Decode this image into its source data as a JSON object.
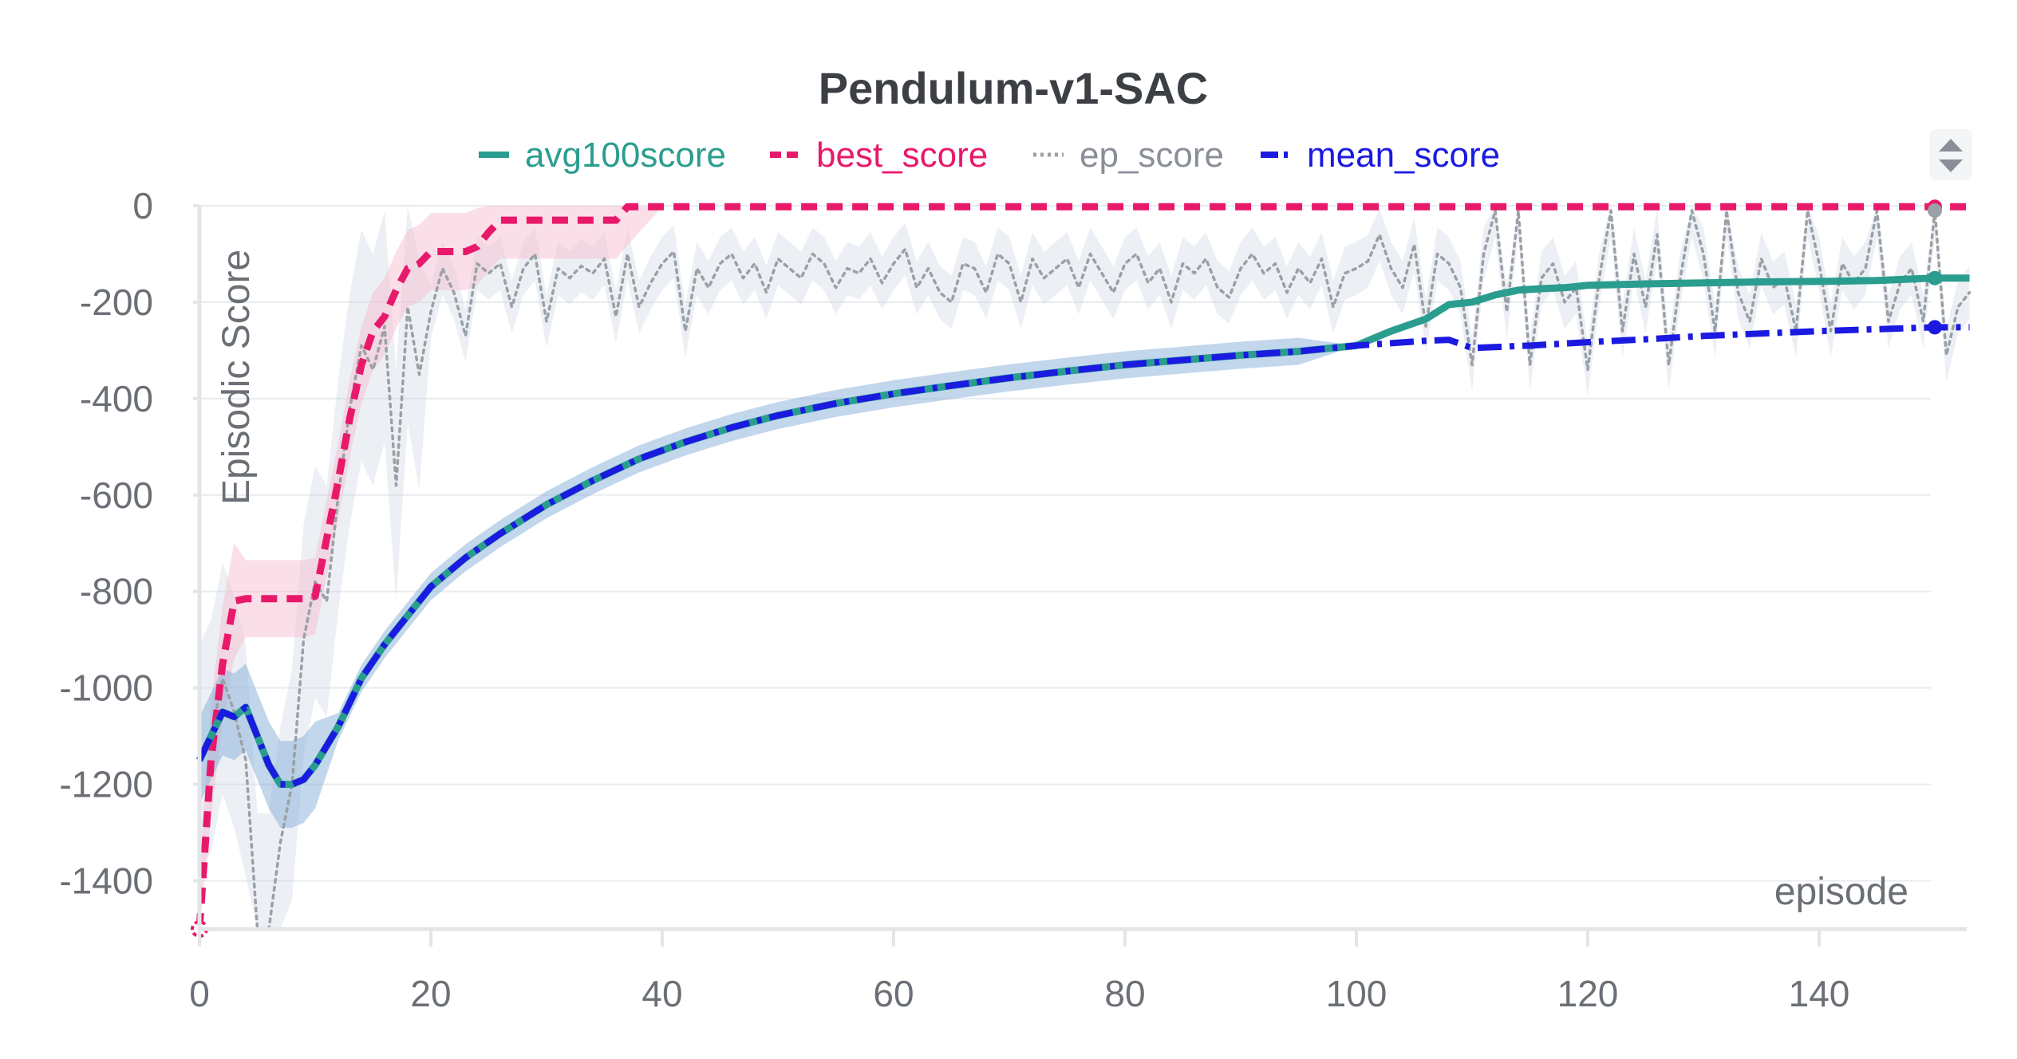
{
  "chart_data": {
    "type": "line",
    "title": "Pendulum-v1-SAC",
    "xlabel": "episode",
    "ylabel": "Episodic Score",
    "xlim": [
      0,
      153
    ],
    "ylim": [
      -1500,
      0
    ],
    "x_ticks": [
      0,
      20,
      40,
      60,
      80,
      100,
      120,
      140
    ],
    "y_ticks": [
      0,
      -200,
      -400,
      -600,
      -800,
      -1000,
      -1200,
      -1400
    ],
    "x_tick_labels": [
      "0",
      "20",
      "40",
      "60",
      "80",
      "100",
      "120",
      "140"
    ],
    "y_tick_labels": [
      "0",
      "-200",
      "-400",
      "-600",
      "-800",
      "-1000",
      "-1200",
      "-1400"
    ],
    "grid": true,
    "legend_position": "top-center",
    "series": [
      {
        "name": "avg100score",
        "color": "#2a9d8f",
        "dash": "solid",
        "x": [
          0,
          2,
          3,
          4,
          5,
          6,
          7,
          8,
          9,
          10,
          12,
          14,
          16,
          18,
          20,
          23,
          26,
          30,
          34,
          38,
          42,
          46,
          50,
          55,
          60,
          65,
          70,
          75,
          80,
          85,
          90,
          95,
          100,
          103,
          106,
          108,
          110,
          112,
          114,
          116,
          118,
          120,
          125,
          130,
          135,
          140,
          145,
          150,
          153
        ],
        "y": [
          -1150,
          -1050,
          -1060,
          -1040,
          -1100,
          -1160,
          -1200,
          -1200,
          -1190,
          -1160,
          -1080,
          -980,
          -910,
          -850,
          -790,
          -730,
          -680,
          -620,
          -570,
          -525,
          -490,
          -460,
          -435,
          -410,
          -390,
          -373,
          -357,
          -343,
          -330,
          -320,
          -310,
          -302,
          -290,
          -260,
          -235,
          -205,
          -200,
          -185,
          -175,
          -172,
          -170,
          -165,
          -162,
          -160,
          -158,
          -157,
          -155,
          -150,
          -150
        ]
      },
      {
        "name": "best_score",
        "color": "#e8196a",
        "dash": "dashed",
        "x": [
          0,
          1,
          2,
          3,
          4,
          5,
          6,
          7,
          8,
          9,
          10,
          11,
          12,
          13,
          14,
          15,
          16,
          17,
          18,
          19,
          20,
          21,
          22,
          23,
          24,
          25,
          26,
          27,
          28,
          29,
          30,
          31,
          32,
          33,
          34,
          35,
          36,
          37,
          40,
          60,
          80,
          100,
          120,
          140,
          150,
          153
        ],
        "y": [
          -1500,
          -1150,
          -950,
          -820,
          -815,
          -815,
          -815,
          -815,
          -815,
          -815,
          -810,
          -690,
          -570,
          -440,
          -330,
          -260,
          -230,
          -175,
          -130,
          -120,
          -95,
          -95,
          -95,
          -95,
          -85,
          -55,
          -30,
          -30,
          -30,
          -30,
          -30,
          -30,
          -30,
          -30,
          -30,
          -30,
          -30,
          -2,
          -2,
          -2,
          -2,
          -2,
          -2,
          -2,
          -2,
          -2
        ]
      },
      {
        "name": "ep_score",
        "color": "#9aa0a6",
        "dash": "dotted",
        "x": [
          0,
          1,
          2,
          3,
          4,
          5,
          6,
          7,
          8,
          9,
          10,
          11,
          12,
          13,
          14,
          15,
          16,
          17,
          18,
          19,
          20,
          21,
          22,
          23,
          24,
          25,
          26,
          27,
          28,
          29,
          30,
          31,
          32,
          33,
          34,
          35,
          36,
          37,
          38,
          39,
          40,
          41,
          42,
          43,
          44,
          45,
          46,
          47,
          48,
          49,
          50,
          51,
          52,
          53,
          54,
          55,
          56,
          57,
          58,
          59,
          60,
          61,
          62,
          63,
          64,
          65,
          66,
          67,
          68,
          69,
          70,
          71,
          72,
          73,
          74,
          75,
          76,
          77,
          78,
          79,
          80,
          81,
          82,
          83,
          84,
          85,
          86,
          87,
          88,
          89,
          90,
          91,
          92,
          93,
          94,
          95,
          96,
          97,
          98,
          99,
          100,
          101,
          102,
          103,
          104,
          105,
          106,
          107,
          108,
          109,
          110,
          111,
          112,
          113,
          114,
          115,
          116,
          117,
          118,
          119,
          120,
          121,
          122,
          123,
          124,
          125,
          126,
          127,
          128,
          129,
          130,
          131,
          132,
          133,
          134,
          135,
          136,
          137,
          138,
          139,
          140,
          141,
          142,
          143,
          144,
          145,
          146,
          147,
          148,
          149,
          150,
          151,
          152,
          153
        ],
        "y": [
          -1150,
          -1100,
          -980,
          -1050,
          -1150,
          -1500,
          -1500,
          -1320,
          -1200,
          -900,
          -780,
          -820,
          -600,
          -420,
          -290,
          -340,
          -250,
          -580,
          -210,
          -350,
          -220,
          -130,
          -180,
          -270,
          -120,
          -140,
          -120,
          -210,
          -130,
          -100,
          -240,
          -130,
          -150,
          -125,
          -140,
          -110,
          -230,
          -100,
          -210,
          -160,
          -120,
          -95,
          -260,
          -130,
          -170,
          -120,
          -100,
          -150,
          -120,
          -180,
          -110,
          -130,
          -150,
          -100,
          -120,
          -170,
          -130,
          -140,
          -110,
          -160,
          -120,
          -90,
          -170,
          -130,
          -180,
          -200,
          -120,
          -130,
          -180,
          -100,
          -120,
          -200,
          -110,
          -150,
          -130,
          -110,
          -170,
          -100,
          -140,
          -180,
          -120,
          -100,
          -160,
          -130,
          -200,
          -120,
          -140,
          -110,
          -170,
          -190,
          -130,
          -100,
          -140,
          -120,
          -180,
          -130,
          -160,
          -110,
          -210,
          -140,
          -130,
          -115,
          -60,
          -130,
          -170,
          -80,
          -250,
          -100,
          -120,
          -170,
          -330,
          -100,
          -10,
          -220,
          -10,
          -330,
          -150,
          -120,
          -200,
          -170,
          -340,
          -150,
          -10,
          -260,
          -100,
          -210,
          -60,
          -330,
          -150,
          -10,
          -100,
          -260,
          -10,
          -180,
          -240,
          -110,
          -170,
          -150,
          -260,
          -10,
          -120,
          -260,
          -120,
          -160,
          -130,
          -10,
          -240,
          -160,
          -130,
          -240,
          -10,
          -310,
          -210,
          -180
        ]
      },
      {
        "name": "mean_score",
        "color": "#1a1ae0",
        "dash": "dashdot",
        "x": [
          0,
          2,
          3,
          4,
          5,
          6,
          7,
          8,
          9,
          10,
          12,
          14,
          16,
          18,
          20,
          23,
          26,
          30,
          34,
          38,
          42,
          46,
          50,
          55,
          60,
          65,
          70,
          75,
          80,
          85,
          90,
          95,
          100,
          103,
          106,
          108,
          110,
          115,
          120,
          125,
          130,
          135,
          140,
          145,
          150,
          153
        ],
        "y": [
          -1150,
          -1050,
          -1060,
          -1040,
          -1100,
          -1160,
          -1200,
          -1200,
          -1190,
          -1160,
          -1080,
          -980,
          -910,
          -850,
          -790,
          -730,
          -680,
          -620,
          -570,
          -525,
          -490,
          -460,
          -435,
          -410,
          -390,
          -373,
          -357,
          -343,
          -330,
          -320,
          -310,
          -302,
          -290,
          -285,
          -280,
          -278,
          -295,
          -290,
          -283,
          -277,
          -270,
          -265,
          -260,
          -256,
          -252,
          -252
        ]
      }
    ]
  },
  "ui": {
    "scroll_up_icon": "triangle-up",
    "scroll_down_icon": "triangle-down"
  }
}
